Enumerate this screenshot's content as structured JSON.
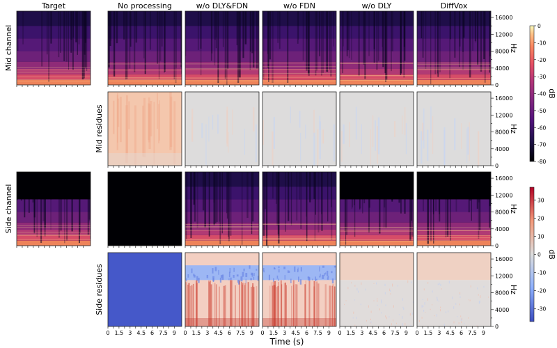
{
  "chart_data": {
    "type": "heatmap",
    "title": "",
    "xlabel": "Time (s)",
    "column_titles": [
      "Target",
      "No processing",
      "w/o DLY&FDN",
      "w/o FDN",
      "w/o DLY",
      "DiffVox"
    ],
    "row_labels": [
      "Mid channel",
      "Mid residues",
      "Side channel",
      "Side residues"
    ],
    "x_ticks": [
      "0",
      "1.5",
      "3",
      "4.5",
      "6",
      "7.5",
      "9"
    ],
    "x_range_s": [
      0,
      10
    ],
    "y_label": "Hz",
    "y_ticks": [
      "0",
      "4000",
      "8000",
      "12000",
      "16000"
    ],
    "y_range_hz": [
      0,
      17500
    ],
    "colorbars": [
      {
        "label": "dB",
        "applies_to": [
          "Mid channel",
          "Side channel"
        ],
        "colormap": "magma",
        "ticks": [
          "0",
          "-10",
          "-20",
          "-30",
          "-40",
          "-50",
          "-60",
          "-70",
          "-80"
        ],
        "range": [
          -80,
          0
        ]
      },
      {
        "label": "dB",
        "applies_to": [
          "Mid residues",
          "Side residues"
        ],
        "colormap": "coolwarm",
        "ticks": [
          "30",
          "20",
          "10",
          "0",
          "-10",
          "-20",
          "-30"
        ],
        "range": [
          -37,
          37
        ]
      }
    ],
    "panels": [
      {
        "row": "Mid channel",
        "column": "Target",
        "description": "full-band vocal spectrogram"
      },
      {
        "row": "Mid channel",
        "column": "No processing",
        "description": "full-band spectrogram"
      },
      {
        "row": "Mid channel",
        "column": "w/o DLY&FDN",
        "description": "full-band spectrogram"
      },
      {
        "row": "Mid channel",
        "column": "w/o FDN",
        "description": "full-band spectrogram"
      },
      {
        "row": "Mid channel",
        "column": "w/o DLY",
        "description": "full-band spectrogram"
      },
      {
        "row": "Mid channel",
        "column": "DiffVox",
        "description": "full-band spectrogram"
      },
      {
        "row": "Mid residues",
        "column": "No processing",
        "description": "mostly positive (warm) residue"
      },
      {
        "row": "Mid residues",
        "column": "w/o DLY&FDN",
        "description": "near-zero residue"
      },
      {
        "row": "Mid residues",
        "column": "w/o FDN",
        "description": "near-zero residue"
      },
      {
        "row": "Mid residues",
        "column": "w/o DLY",
        "description": "near-zero residue"
      },
      {
        "row": "Mid residues",
        "column": "DiffVox",
        "description": "near-zero residue"
      },
      {
        "row": "Side channel",
        "column": "Target",
        "description": "energy below ~11000 Hz, silent above"
      },
      {
        "row": "Side channel",
        "column": "No processing",
        "description": "silent (all -80 dB)"
      },
      {
        "row": "Side channel",
        "column": "w/o DLY&FDN",
        "description": "full-band spectrogram"
      },
      {
        "row": "Side channel",
        "column": "w/o FDN",
        "description": "full-band spectrogram"
      },
      {
        "row": "Side channel",
        "column": "w/o DLY",
        "description": "energy below ~11000 Hz, silent above"
      },
      {
        "row": "Side channel",
        "column": "DiffVox",
        "description": "energy below ~11000 Hz, silent above"
      },
      {
        "row": "Side residues",
        "column": "No processing",
        "description": "uniform strong negative residue (~-33 dB)"
      },
      {
        "row": "Side residues",
        "column": "w/o DLY&FDN",
        "description": "positive above, negative band ~11000-14000 Hz, warm streaks low"
      },
      {
        "row": "Side residues",
        "column": "w/o FDN",
        "description": "positive above, negative band ~11000-14000 Hz, warm streaks low"
      },
      {
        "row": "Side residues",
        "column": "w/o DLY",
        "description": "mild positive above ~11000 Hz, near-zero below"
      },
      {
        "row": "Side residues",
        "column": "DiffVox",
        "description": "mild positive above ~11000 Hz, near-zero below"
      }
    ]
  }
}
